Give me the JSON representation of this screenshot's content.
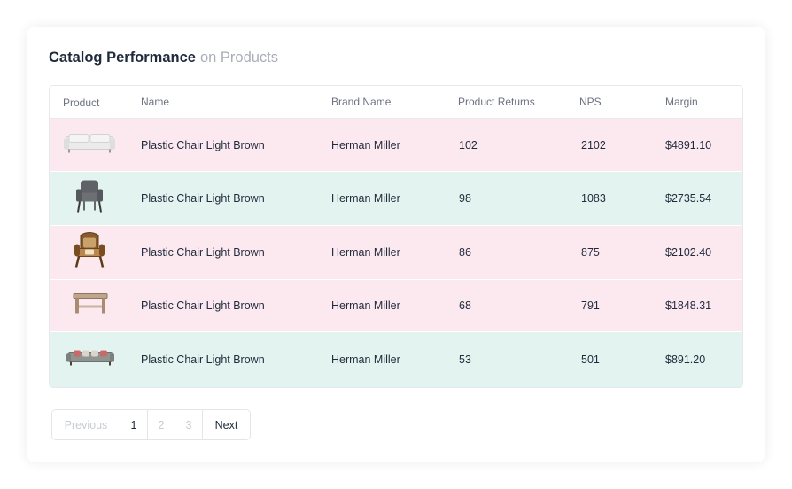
{
  "header": {
    "title": "Catalog Performance",
    "subtitle": "on Products"
  },
  "table": {
    "columns": [
      "Product",
      "Name",
      "Brand Name",
      "Product Returns",
      "NPS",
      "Margin"
    ],
    "rows": [
      {
        "image": "white-sofa",
        "name": "Plastic Chair Light Brown",
        "brand": "Herman Miller",
        "returns": "102",
        "nps": "2102",
        "margin": "$4891.10",
        "bg": "#fce8ef"
      },
      {
        "image": "grey-armchair",
        "name": "Plastic Chair Light Brown",
        "brand": "Herman Miller",
        "returns": "98",
        "nps": "1083",
        "margin": "$2735.54",
        "bg": "#e3f3ef"
      },
      {
        "image": "wooden-armchair",
        "name": "Plastic Chair Light Brown",
        "brand": "Herman Miller",
        "returns": "86",
        "nps": "875",
        "margin": "$2102.40",
        "bg": "#fce8ef"
      },
      {
        "image": "wooden-table",
        "name": "Plastic Chair Light Brown",
        "brand": "Herman Miller",
        "returns": "68",
        "nps": "791",
        "margin": "$1848.31",
        "bg": "#fce8ef"
      },
      {
        "image": "grey-sofa",
        "name": "Plastic Chair Light Brown",
        "brand": "Herman Miller",
        "returns": "53",
        "nps": "501",
        "margin": "$891.20",
        "bg": "#e3f3ef"
      }
    ]
  },
  "pagination": {
    "previous": "Previous",
    "pages": [
      "1",
      "2",
      "3"
    ],
    "current": "1",
    "next": "Next"
  }
}
